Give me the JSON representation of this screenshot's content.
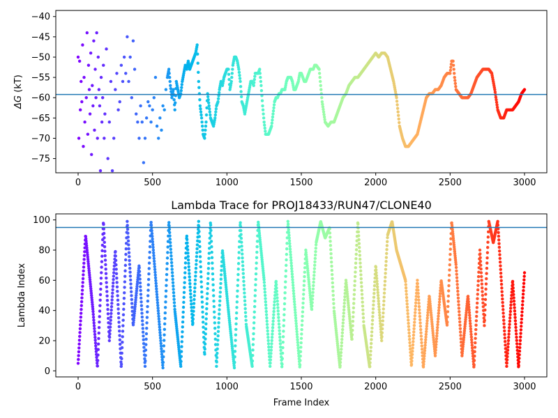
{
  "chart_data": [
    {
      "id": "dg",
      "type": "scatter",
      "title": "",
      "xlabel": "",
      "ylabel": "ΔG (kT)",
      "ylabel_symbol": "ΔG",
      "ylabel_unit": " (kT)",
      "xlim": [
        -150,
        3150
      ],
      "ylim": [
        -78.5,
        -38.5
      ],
      "xticks": [
        0,
        500,
        1000,
        1500,
        2000,
        2500,
        3000
      ],
      "yticks": [
        -40,
        -45,
        -50,
        -55,
        -60,
        -65,
        -70,
        -75
      ],
      "hline": -59.2,
      "hline_color": "#1f77b4",
      "colormap": "rainbow",
      "grid": false,
      "legend": "none",
      "points_per_unit": 1,
      "trace_anchors": [
        [
          0,
          -50
        ],
        [
          5,
          -70
        ],
        [
          10,
          -51
        ],
        [
          15,
          -63
        ],
        [
          20,
          -56
        ],
        [
          25,
          -61
        ],
        [
          30,
          -47
        ],
        [
          35,
          -72
        ],
        [
          40,
          -55
        ],
        [
          45,
          -66
        ],
        [
          50,
          -38
        ],
        [
          55,
          -60
        ],
        [
          60,
          -44
        ],
        [
          65,
          -69
        ],
        [
          70,
          -52
        ],
        [
          75,
          -58
        ],
        [
          80,
          -64
        ],
        [
          85,
          -49
        ],
        [
          90,
          -74
        ],
        [
          95,
          -57
        ],
        [
          100,
          -62
        ],
        [
          105,
          -46
        ],
        [
          110,
          -68
        ],
        [
          115,
          -53
        ],
        [
          120,
          -60
        ],
        [
          125,
          -44
        ],
        [
          130,
          -70
        ],
        [
          135,
          -50
        ],
        [
          140,
          -58
        ],
        [
          145,
          -62
        ],
        [
          150,
          -78
        ],
        [
          155,
          -55
        ],
        [
          160,
          -66
        ],
        [
          165,
          -60
        ],
        [
          170,
          -52
        ],
        [
          175,
          -70
        ],
        [
          180,
          -64
        ],
        [
          190,
          -48
        ],
        [
          200,
          -75
        ],
        [
          210,
          -66
        ],
        [
          220,
          -56
        ],
        [
          230,
          -78
        ],
        [
          240,
          -70
        ],
        [
          250,
          -58
        ],
        [
          260,
          -54
        ],
        [
          270,
          -63
        ],
        [
          280,
          -61
        ],
        [
          290,
          -52
        ],
        [
          300,
          -56
        ],
        [
          310,
          -50
        ],
        [
          320,
          -54
        ],
        [
          330,
          -45
        ],
        [
          340,
          -56
        ],
        [
          350,
          -50
        ],
        [
          360,
          -60
        ],
        [
          370,
          -46
        ],
        [
          380,
          -53
        ],
        [
          390,
          -64
        ],
        [
          400,
          -66
        ],
        [
          410,
          -70
        ],
        [
          420,
          -62
        ],
        [
          430,
          -66
        ],
        [
          440,
          -76
        ],
        [
          450,
          -70
        ],
        [
          460,
          -65
        ],
        [
          470,
          -61
        ],
        [
          480,
          -62
        ],
        [
          490,
          -66
        ],
        [
          500,
          -63
        ],
        [
          510,
          -60
        ],
        [
          520,
          -55
        ],
        [
          530,
          -67
        ],
        [
          540,
          -70
        ],
        [
          550,
          -65
        ],
        [
          560,
          -68
        ],
        [
          570,
          -62
        ],
        [
          580,
          -63
        ],
        [
          590,
          -58
        ],
        [
          600,
          -55
        ],
        [
          610,
          -53
        ],
        [
          620,
          -57
        ],
        [
          630,
          -60
        ],
        [
          640,
          -58
        ],
        [
          650,
          -63
        ],
        [
          660,
          -56
        ],
        [
          670,
          -58
        ],
        [
          680,
          -60
        ],
        [
          690,
          -59
        ],
        [
          700,
          -56
        ],
        [
          710,
          -54
        ],
        [
          720,
          -52
        ],
        [
          730,
          -53
        ],
        [
          740,
          -51
        ],
        [
          750,
          -53
        ],
        [
          760,
          -52
        ],
        [
          770,
          -51
        ],
        [
          780,
          -50
        ],
        [
          790,
          -49
        ],
        [
          800,
          -47
        ],
        [
          810,
          -56
        ],
        [
          820,
          -62
        ],
        [
          830,
          -65
        ],
        [
          840,
          -69
        ],
        [
          850,
          -70
        ],
        [
          860,
          -66
        ],
        [
          870,
          -59
        ],
        [
          880,
          -62
        ],
        [
          890,
          -65
        ],
        [
          900,
          -66
        ],
        [
          910,
          -67
        ],
        [
          920,
          -65
        ],
        [
          930,
          -62
        ],
        [
          940,
          -61
        ],
        [
          950,
          -58
        ],
        [
          960,
          -56
        ],
        [
          970,
          -57
        ],
        [
          980,
          -55
        ],
        [
          990,
          -54
        ],
        [
          1000,
          -53
        ],
        [
          1010,
          -53
        ],
        [
          1020,
          -58
        ],
        [
          1030,
          -56
        ],
        [
          1040,
          -52
        ],
        [
          1050,
          -50
        ],
        [
          1060,
          -50
        ],
        [
          1070,
          -51
        ],
        [
          1080,
          -53
        ],
        [
          1090,
          -56
        ],
        [
          1100,
          -61
        ],
        [
          1110,
          -62
        ],
        [
          1120,
          -64
        ],
        [
          1130,
          -62
        ],
        [
          1140,
          -60
        ],
        [
          1150,
          -58
        ],
        [
          1160,
          -56
        ],
        [
          1170,
          -56
        ],
        [
          1180,
          -57
        ],
        [
          1190,
          -54
        ],
        [
          1200,
          -54
        ],
        [
          1210,
          -54
        ],
        [
          1220,
          -53
        ],
        [
          1230,
          -57
        ],
        [
          1240,
          -62
        ],
        [
          1250,
          -66
        ],
        [
          1260,
          -69
        ],
        [
          1270,
          -69
        ],
        [
          1280,
          -69
        ],
        [
          1290,
          -68
        ],
        [
          1300,
          -67
        ],
        [
          1310,
          -64
        ],
        [
          1320,
          -61
        ],
        [
          1330,
          -60
        ],
        [
          1340,
          -60
        ],
        [
          1350,
          -59
        ],
        [
          1360,
          -59
        ],
        [
          1370,
          -58
        ],
        [
          1380,
          -58
        ],
        [
          1390,
          -58
        ],
        [
          1400,
          -56
        ],
        [
          1410,
          -55
        ],
        [
          1420,
          -55
        ],
        [
          1430,
          -55
        ],
        [
          1440,
          -56
        ],
        [
          1450,
          -58
        ],
        [
          1460,
          -58
        ],
        [
          1470,
          -57
        ],
        [
          1480,
          -56
        ],
        [
          1490,
          -54
        ],
        [
          1500,
          -54
        ],
        [
          1510,
          -55
        ],
        [
          1520,
          -56
        ],
        [
          1530,
          -56
        ],
        [
          1540,
          -55
        ],
        [
          1550,
          -54
        ],
        [
          1560,
          -53
        ],
        [
          1570,
          -53
        ],
        [
          1580,
          -53
        ],
        [
          1590,
          -52
        ],
        [
          1600,
          -52
        ],
        [
          1620,
          -53
        ],
        [
          1640,
          -61
        ],
        [
          1660,
          -66
        ],
        [
          1680,
          -67
        ],
        [
          1700,
          -66
        ],
        [
          1720,
          -66
        ],
        [
          1740,
          -64
        ],
        [
          1760,
          -62
        ],
        [
          1780,
          -60
        ],
        [
          1800,
          -59
        ],
        [
          1820,
          -57
        ],
        [
          1840,
          -56
        ],
        [
          1860,
          -55
        ],
        [
          1880,
          -55
        ],
        [
          1900,
          -54
        ],
        [
          1920,
          -53
        ],
        [
          1940,
          -52
        ],
        [
          1960,
          -51
        ],
        [
          1980,
          -50
        ],
        [
          2000,
          -49
        ],
        [
          2020,
          -50
        ],
        [
          2040,
          -49
        ],
        [
          2060,
          -49
        ],
        [
          2080,
          -50
        ],
        [
          2100,
          -53
        ],
        [
          2120,
          -56
        ],
        [
          2140,
          -60
        ],
        [
          2160,
          -67
        ],
        [
          2180,
          -70
        ],
        [
          2200,
          -72
        ],
        [
          2220,
          -72
        ],
        [
          2240,
          -71
        ],
        [
          2260,
          -70
        ],
        [
          2280,
          -69
        ],
        [
          2300,
          -66
        ],
        [
          2320,
          -63
        ],
        [
          2340,
          -60
        ],
        [
          2360,
          -59
        ],
        [
          2380,
          -59
        ],
        [
          2400,
          -58
        ],
        [
          2420,
          -58
        ],
        [
          2440,
          -57
        ],
        [
          2460,
          -55
        ],
        [
          2480,
          -54
        ],
        [
          2500,
          -54
        ],
        [
          2510,
          -51
        ],
        [
          2520,
          -51
        ],
        [
          2530,
          -55
        ],
        [
          2540,
          -58
        ],
        [
          2560,
          -59
        ],
        [
          2580,
          -60
        ],
        [
          2600,
          -60
        ],
        [
          2620,
          -60
        ],
        [
          2640,
          -59
        ],
        [
          2660,
          -57
        ],
        [
          2680,
          -55
        ],
        [
          2700,
          -54
        ],
        [
          2720,
          -53
        ],
        [
          2740,
          -53
        ],
        [
          2760,
          -53
        ],
        [
          2780,
          -54
        ],
        [
          2800,
          -58
        ],
        [
          2820,
          -63
        ],
        [
          2840,
          -65
        ],
        [
          2860,
          -65
        ],
        [
          2880,
          -63
        ],
        [
          2900,
          -63
        ],
        [
          2920,
          -63
        ],
        [
          2940,
          -62
        ],
        [
          2960,
          -61
        ],
        [
          2980,
          -59
        ],
        [
          3000,
          -58
        ]
      ]
    },
    {
      "id": "lambda",
      "type": "scatter",
      "title": "Lambda Trace for PROJ18433/RUN47/CLONE40",
      "xlabel": "Frame Index",
      "ylabel": "Lambda Index",
      "xlim": [
        -150,
        3150
      ],
      "ylim": [
        -4,
        104
      ],
      "xticks": [
        0,
        500,
        1000,
        1500,
        2000,
        2500,
        3000
      ],
      "yticks": [
        0,
        20,
        40,
        60,
        80,
        100
      ],
      "hline": 95,
      "hline_color": "#1f77b4",
      "colormap": "rainbow",
      "grid": false,
      "legend": "none",
      "n_frames": 3001,
      "trace_anchors": [
        [
          0,
          5
        ],
        [
          50,
          90
        ],
        [
          100,
          40
        ],
        [
          130,
          2
        ],
        [
          170,
          99
        ],
        [
          210,
          20
        ],
        [
          250,
          80
        ],
        [
          290,
          2
        ],
        [
          330,
          99
        ],
        [
          370,
          30
        ],
        [
          410,
          70
        ],
        [
          450,
          3
        ],
        [
          490,
          99
        ],
        [
          530,
          50
        ],
        [
          570,
          2
        ],
        [
          610,
          99
        ],
        [
          650,
          40
        ],
        [
          690,
          3
        ],
        [
          730,
          90
        ],
        [
          770,
          30
        ],
        [
          810,
          99
        ],
        [
          850,
          10
        ],
        [
          890,
          99
        ],
        [
          930,
          3
        ],
        [
          970,
          80
        ],
        [
          1010,
          40
        ],
        [
          1050,
          2
        ],
        [
          1090,
          99
        ],
        [
          1130,
          30
        ],
        [
          1170,
          3
        ],
        [
          1210,
          99
        ],
        [
          1250,
          60
        ],
        [
          1290,
          3
        ],
        [
          1330,
          60
        ],
        [
          1370,
          2
        ],
        [
          1410,
          99
        ],
        [
          1450,
          50
        ],
        [
          1490,
          2
        ],
        [
          1530,
          80
        ],
        [
          1570,
          40
        ],
        [
          1600,
          85
        ],
        [
          1630,
          99
        ],
        [
          1660,
          88
        ],
        [
          1690,
          95
        ],
        [
          1720,
          40
        ],
        [
          1760,
          2
        ],
        [
          1800,
          60
        ],
        [
          1840,
          20
        ],
        [
          1880,
          99
        ],
        [
          1920,
          30
        ],
        [
          1960,
          2
        ],
        [
          2000,
          70
        ],
        [
          2040,
          20
        ],
        [
          2080,
          90
        ],
        [
          2110,
          99
        ],
        [
          2140,
          80
        ],
        [
          2170,
          70
        ],
        [
          2200,
          60
        ],
        [
          2240,
          3
        ],
        [
          2280,
          60
        ],
        [
          2320,
          2
        ],
        [
          2360,
          50
        ],
        [
          2400,
          10
        ],
        [
          2440,
          60
        ],
        [
          2480,
          30
        ],
        [
          2510,
          99
        ],
        [
          2540,
          70
        ],
        [
          2580,
          10
        ],
        [
          2620,
          50
        ],
        [
          2660,
          2
        ],
        [
          2700,
          80
        ],
        [
          2730,
          30
        ],
        [
          2760,
          99
        ],
        [
          2790,
          85
        ],
        [
          2820,
          99
        ],
        [
          2850,
          50
        ],
        [
          2880,
          3
        ],
        [
          2920,
          60
        ],
        [
          2960,
          2
        ],
        [
          3000,
          65
        ]
      ]
    }
  ]
}
